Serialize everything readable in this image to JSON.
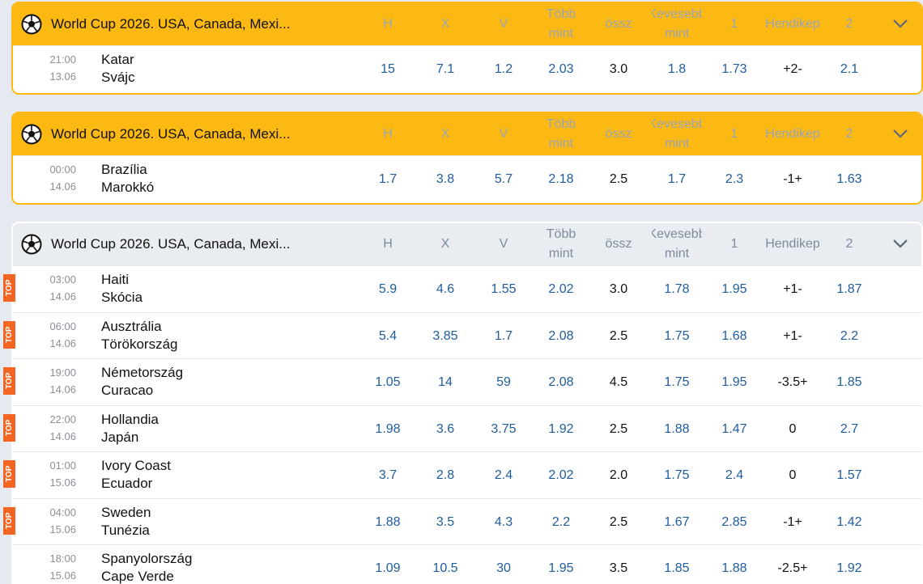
{
  "sections": [
    {
      "title": "World Cup 2026. USA, Canada, Mexi...",
      "headers": [
        "H",
        "X",
        "V",
        "Több mint",
        "össz",
        "Kevesebb mint",
        "1",
        "Hendikep",
        "2"
      ],
      "matches": [
        {
          "time": "21:00",
          "date": "13.06",
          "home": "Katar",
          "away": "Svájc",
          "odds": [
            "15",
            "7.1",
            "1.2",
            "2.03",
            "3.0",
            "1.8",
            "1.73",
            "+2-",
            "2.1"
          ]
        }
      ]
    },
    {
      "title": "World Cup 2026. USA, Canada, Mexi...",
      "headers": [
        "H",
        "X",
        "V",
        "Több mint",
        "össz",
        "Kevesebb mint",
        "1",
        "Hendikep",
        "2"
      ],
      "matches": [
        {
          "time": "00:00",
          "date": "14.06",
          "home": "Brazília",
          "away": "Marokkó",
          "odds": [
            "1.7",
            "3.8",
            "5.7",
            "2.18",
            "2.5",
            "1.7",
            "2.3",
            "-1+",
            "1.63"
          ]
        }
      ]
    },
    {
      "title": "World Cup 2026. USA, Canada, Mexi...",
      "headers": [
        "H",
        "X",
        "V",
        "Több mint",
        "össz",
        "Kevesebb mint",
        "1",
        "Hendikep",
        "2"
      ],
      "matches": [
        {
          "badge": "TOP",
          "time": "03:00",
          "date": "14.06",
          "home": "Haiti",
          "away": "Skócia",
          "odds": [
            "5.9",
            "4.6",
            "1.55",
            "2.02",
            "3.0",
            "1.78",
            "1.95",
            "+1-",
            "1.87"
          ]
        },
        {
          "badge": "TOP",
          "time": "06:00",
          "date": "14.06",
          "home": "Ausztrália",
          "away": "Törökország",
          "odds": [
            "5.4",
            "3.85",
            "1.7",
            "2.08",
            "2.5",
            "1.75",
            "1.68",
            "+1-",
            "2.2"
          ]
        },
        {
          "badge": "TOP",
          "time": "19:00",
          "date": "14.06",
          "home": "Németország",
          "away": "Curacao",
          "odds": [
            "1.05",
            "14",
            "59",
            "2.08",
            "4.5",
            "1.75",
            "1.95",
            "-3.5+",
            "1.85"
          ]
        },
        {
          "badge": "TOP",
          "time": "22:00",
          "date": "14.06",
          "home": "Hollandia",
          "away": "Japán",
          "odds": [
            "1.98",
            "3.6",
            "3.75",
            "1.92",
            "2.5",
            "1.88",
            "1.47",
            "0",
            "2.7"
          ]
        },
        {
          "badge": "TOP",
          "time": "01:00",
          "date": "15.06",
          "home": "Ivory Coast",
          "away": "Ecuador",
          "odds": [
            "3.7",
            "2.8",
            "2.4",
            "2.02",
            "2.0",
            "1.75",
            "2.4",
            "0",
            "1.57"
          ]
        },
        {
          "badge": "TOP",
          "time": "04:00",
          "date": "15.06",
          "home": "Sweden",
          "away": "Tunézia",
          "odds": [
            "1.88",
            "3.5",
            "4.3",
            "2.2",
            "2.5",
            "1.67",
            "2.85",
            "-1+",
            "1.42"
          ]
        },
        {
          "time": "18:00",
          "date": "15.06",
          "home": "Spanyolország",
          "away": "Cape Verde",
          "odds": [
            "1.09",
            "10.5",
            "30",
            "1.95",
            "3.5",
            "1.85",
            "1.88",
            "-2.5+",
            "1.92"
          ]
        }
      ]
    }
  ]
}
